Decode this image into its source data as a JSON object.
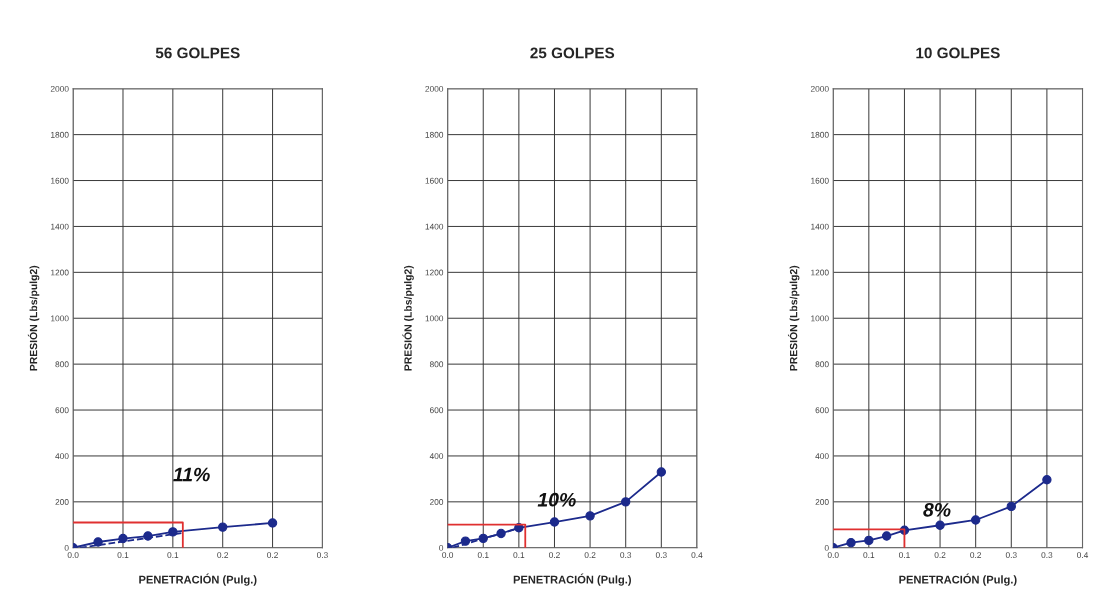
{
  "chart_data": [
    {
      "type": "line",
      "title": "56 GOLPES",
      "xlabel": "PENETRACIÓN (Pulg.)",
      "ylabel": "PRESIÓN (Lbs/pulg2)",
      "xlim": [
        0,
        0.25
      ],
      "xticks": [
        {
          "value": 0,
          "label": "0.0"
        },
        {
          "value": 0.05,
          "label": "0.1"
        },
        {
          "value": 0.1,
          "label": "0.1"
        },
        {
          "value": 0.15,
          "label": "0.2"
        },
        {
          "value": 0.2,
          "label": "0.2"
        },
        {
          "value": 0.25,
          "label": "0.3"
        }
      ],
      "ylim": [
        0,
        2000
      ],
      "yticks": [
        0,
        200,
        400,
        600,
        800,
        1000,
        1200,
        1400,
        1600,
        1800,
        2000
      ],
      "grid": true,
      "series": [
        {
          "color": "#1c2a8c",
          "marker": "circle",
          "line_style": "solid",
          "x": [
            0,
            0.025,
            0.05,
            0.075,
            0.1,
            0.15,
            0.2
          ],
          "values": [
            0,
            25,
            40,
            51,
            69,
            90,
            108
          ]
        },
        {
          "color": "#1c2a8c",
          "marker": "none",
          "line_style": "dashed",
          "x": [
            0.007,
            0.11
          ],
          "values": [
            0,
            65
          ]
        },
        {
          "color": "#e03030",
          "marker": "none",
          "line_style": "solid",
          "x": [
            0,
            0.11,
            0.11
          ],
          "values": [
            110,
            110,
            0
          ]
        }
      ],
      "annotations": [
        "11%"
      ]
    },
    {
      "type": "line",
      "title": "25 GOLPES",
      "xlabel": "PENETRACIÓN (Pulg.)",
      "ylabel": "PRESIÓN (Lbs/pulg2)",
      "xlim": [
        0,
        0.35
      ],
      "xticks": [
        {
          "value": 0,
          "label": "0.0"
        },
        {
          "value": 0.05,
          "label": "0.1"
        },
        {
          "value": 0.1,
          "label": "0.1"
        },
        {
          "value": 0.15,
          "label": "0.2"
        },
        {
          "value": 0.2,
          "label": "0.2"
        },
        {
          "value": 0.25,
          "label": "0.3"
        },
        {
          "value": 0.3,
          "label": "0.3"
        },
        {
          "value": 0.35,
          "label": "0.4"
        }
      ],
      "ylim": [
        0,
        2000
      ],
      "yticks": [
        0,
        200,
        400,
        600,
        800,
        1000,
        1200,
        1400,
        1600,
        1800,
        2000
      ],
      "grid": true,
      "series": [
        {
          "color": "#1c2a8c",
          "marker": "circle",
          "line_style": "solid",
          "x": [
            0,
            0.025,
            0.05,
            0.075,
            0.1,
            0.15,
            0.2,
            0.25,
            0.3
          ],
          "values": [
            0,
            29,
            41,
            62,
            87,
            112,
            139,
            200,
            330
          ]
        },
        {
          "color": "#1c2a8c",
          "marker": "none",
          "line_style": "dashed",
          "x": [
            0.007,
            0.1
          ],
          "values": [
            0,
            85
          ]
        },
        {
          "color": "#e03030",
          "marker": "none",
          "line_style": "solid",
          "x": [
            0,
            0.109,
            0.109
          ],
          "values": [
            101,
            101,
            0
          ]
        }
      ],
      "annotations": [
        "10%"
      ]
    },
    {
      "type": "line",
      "title": "10 GOLPES",
      "xlabel": "PENETRACIÓN (Pulg.)",
      "ylabel": "PRESIÓN (Lbs/pulg2)",
      "xlim": [
        0,
        0.35
      ],
      "xticks": [
        {
          "value": 0,
          "label": "0.0"
        },
        {
          "value": 0.05,
          "label": "0.1"
        },
        {
          "value": 0.1,
          "label": "0.1"
        },
        {
          "value": 0.15,
          "label": "0.2"
        },
        {
          "value": 0.2,
          "label": "0.2"
        },
        {
          "value": 0.25,
          "label": "0.3"
        },
        {
          "value": 0.3,
          "label": "0.3"
        },
        {
          "value": 0.35,
          "label": "0.4"
        }
      ],
      "ylim": [
        0,
        2000
      ],
      "yticks": [
        0,
        200,
        400,
        600,
        800,
        1000,
        1200,
        1400,
        1600,
        1800,
        2000
      ],
      "grid": true,
      "series": [
        {
          "color": "#1c2a8c",
          "marker": "circle",
          "line_style": "solid",
          "x": [
            0,
            0.025,
            0.05,
            0.075,
            0.1,
            0.15,
            0.2,
            0.25,
            0.3
          ],
          "values": [
            0,
            22,
            32,
            51,
            76,
            98,
            121,
            180,
            296
          ]
        },
        {
          "color": "#e03030",
          "marker": "none",
          "line_style": "solid",
          "x": [
            0,
            0.1,
            0.1
          ],
          "values": [
            80,
            80,
            0
          ]
        }
      ],
      "annotations": [
        "8%"
      ]
    }
  ]
}
